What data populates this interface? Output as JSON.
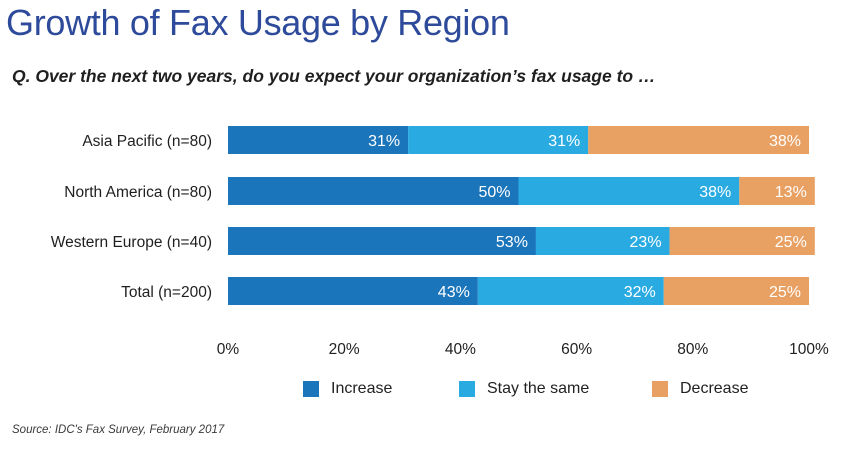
{
  "title": "Growth of Fax Usage by Region",
  "question": "Q.  Over the next two years, do you expect your organization’s fax usage to …",
  "source": "Source: IDC's Fax Survey, February 2017",
  "chart_data": {
    "type": "bar",
    "orientation": "horizontal",
    "stacked": true,
    "categories": [
      "Asia Pacific (n=80)",
      "North America (n=80)",
      "Western Europe (n=40)",
      "Total (n=200)"
    ],
    "series": [
      {
        "name": "Increase",
        "color": "#1b75bb",
        "values": [
          31,
          50,
          53,
          43
        ],
        "labels": [
          "31%",
          "50%",
          "53%",
          "43%"
        ]
      },
      {
        "name": "Stay the same",
        "color": "#29abe2",
        "values": [
          31,
          38,
          23,
          32
        ],
        "labels": [
          "31%",
          "38%",
          "23%",
          "32%"
        ]
      },
      {
        "name": "Decrease",
        "color": "#e8a063",
        "values": [
          38,
          13,
          25,
          25
        ],
        "labels": [
          "38%",
          "13%",
          "25%",
          "25%"
        ]
      }
    ],
    "xlim": [
      0,
      100
    ],
    "xticks": [
      "0%",
      "20%",
      "40%",
      "60%",
      "80%",
      "100%"
    ],
    "grid": false,
    "legend_position": "bottom"
  }
}
